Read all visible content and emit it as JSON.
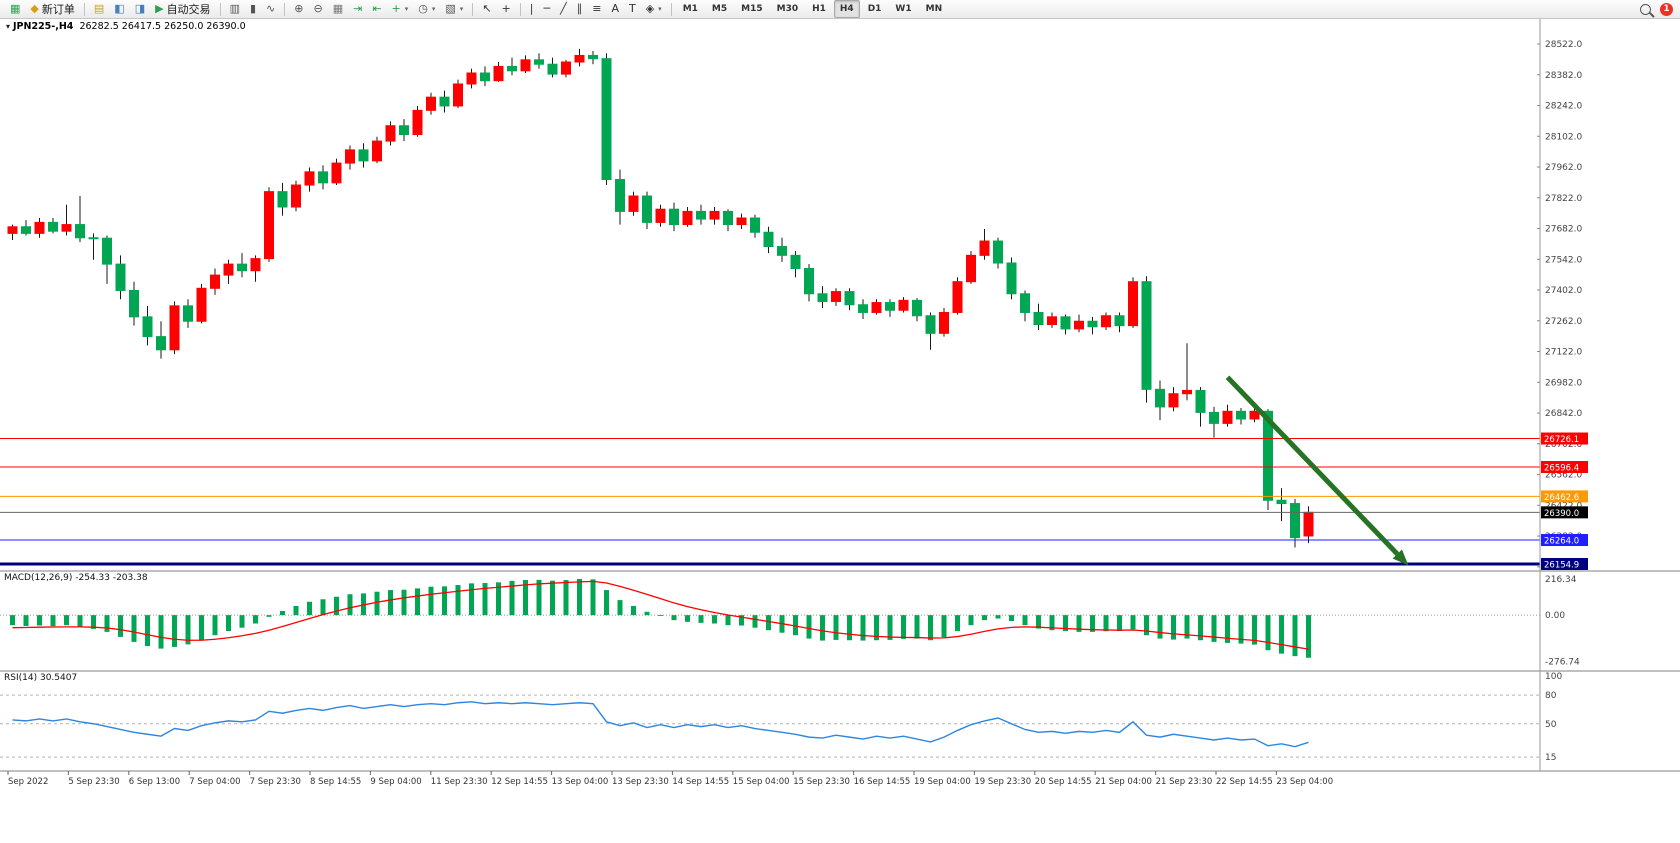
{
  "toolbar": {
    "items": [
      {
        "name": "new-chart-button",
        "glyph": "▦",
        "color": "#2e9e4f"
      },
      {
        "name": "new-order-button",
        "glyph": "◆",
        "color": "#d8a018",
        "label": "新订单"
      },
      {
        "type": "sep"
      },
      {
        "name": "meta-editor-button",
        "glyph": "▤",
        "color": "#c9a227"
      },
      {
        "name": "market-watch-button",
        "glyph": "◧",
        "color": "#4a7dbd"
      },
      {
        "name": "navigator-button",
        "glyph": "◨",
        "color": "#4a7dbd"
      },
      {
        "name": "auto-trading-button",
        "glyph": "▶",
        "color": "#2e9e4f",
        "label": "自动交易"
      },
      {
        "type": "sep"
      },
      {
        "name": "bar-chart-button",
        "glyph": "▥",
        "color": "#555555"
      },
      {
        "name": "candlestick-chart-button",
        "glyph": "▮",
        "color": "#555555"
      },
      {
        "name": "line-chart-button",
        "glyph": "∿",
        "color": "#555555"
      },
      {
        "type": "sep"
      },
      {
        "name": "zoom-in-button",
        "glyph": "⊕",
        "color": "#555555"
      },
      {
        "name": "zoom-out-button",
        "glyph": "⊖",
        "color": "#555555"
      },
      {
        "name": "tile-windows-button",
        "glyph": "▦",
        "color": "#777777"
      },
      {
        "name": "auto-scroll-button",
        "glyph": "⇥",
        "color": "#2e9e4f"
      },
      {
        "name": "chart-shift-button",
        "glyph": "⇤",
        "color": "#2e9e4f"
      },
      {
        "name": "indicators-button",
        "glyph": "+",
        "color": "#2e9e4f",
        "dropdown": true
      },
      {
        "name": "periods-button",
        "glyph": "◷",
        "color": "#555555",
        "dropdown": true
      },
      {
        "name": "templates-button",
        "glyph": "▧",
        "color": "#555555",
        "dropdown": true
      },
      {
        "type": "sep"
      },
      {
        "name": "cursor-button",
        "glyph": "↖",
        "color": "#333333"
      },
      {
        "name": "crosshair-button",
        "glyph": "+",
        "color": "#333333"
      },
      {
        "type": "sep"
      },
      {
        "name": "vertical-line-button",
        "glyph": "|",
        "color": "#333333"
      },
      {
        "name": "horizontal-line-button",
        "glyph": "─",
        "color": "#333333"
      },
      {
        "name": "trendline-button",
        "glyph": "╱",
        "color": "#333333"
      },
      {
        "name": "channel-button",
        "glyph": "∥",
        "color": "#333333"
      },
      {
        "name": "fibonacci-button",
        "glyph": "≡",
        "color": "#333333"
      },
      {
        "name": "text-button",
        "glyph": "A",
        "color": "#333333"
      },
      {
        "name": "text-label-button",
        "glyph": "T",
        "color": "#333333"
      },
      {
        "name": "shapes-button",
        "glyph": "◈",
        "color": "#333333",
        "dropdown": true
      },
      {
        "type": "sep"
      }
    ],
    "timeframes": [
      "M1",
      "M5",
      "M15",
      "M30",
      "H1",
      "H4",
      "D1",
      "W1",
      "MN"
    ],
    "active_timeframe": "H4",
    "notification_count": "1"
  },
  "chart": {
    "symbol_title": "JPN225-,H4",
    "ohlc_text": "26282.5 26417.5 26250.0 26390.0",
    "dropdown_icon": "▾"
  },
  "chart_data": [
    {
      "type": "candlestick",
      "symbol": "JPN225-",
      "timeframe": "H4",
      "last_ohlc": {
        "open": 26282.5,
        "high": 26417.5,
        "low": 26250.0,
        "close": 26390.0
      },
      "up_color": "#ff0000",
      "down_color": "#00a651",
      "y_axis": {
        "max": 28563,
        "min": 26123,
        "labels": [
          "28522.0",
          "28382.0",
          "28242.0",
          "28102.0",
          "27962.0",
          "27822.0",
          "27682.0",
          "27542.0",
          "27402.0",
          "27262.0",
          "27122.0",
          "26982.0",
          "26842.0",
          "26702.0",
          "26562.0",
          "26422.0",
          "26282.0",
          "26142.0"
        ]
      },
      "candles": [
        [
          27660,
          27700,
          27630,
          27690
        ],
        [
          27690,
          27720,
          27650,
          27660
        ],
        [
          27660,
          27730,
          27640,
          27710
        ],
        [
          27710,
          27730,
          27660,
          27670
        ],
        [
          27670,
          27790,
          27650,
          27700
        ],
        [
          27700,
          27830,
          27620,
          27640
        ],
        [
          27640,
          27660,
          27540,
          27638
        ],
        [
          27638,
          27650,
          27430,
          27520
        ],
        [
          27520,
          27560,
          27360,
          27400
        ],
        [
          27400,
          27440,
          27240,
          27280
        ],
        [
          27280,
          27330,
          27150,
          27190
        ],
        [
          27190,
          27260,
          27090,
          27130
        ],
        [
          27130,
          27350,
          27110,
          27330
        ],
        [
          27330,
          27360,
          27230,
          27260
        ],
        [
          27260,
          27430,
          27250,
          27410
        ],
        [
          27410,
          27500,
          27380,
          27470
        ],
        [
          27470,
          27540,
          27430,
          27520
        ],
        [
          27520,
          27570,
          27460,
          27490
        ],
        [
          27490,
          27560,
          27440,
          27545
        ],
        [
          27545,
          27870,
          27530,
          27850
        ],
        [
          27850,
          27890,
          27740,
          27780
        ],
        [
          27780,
          27900,
          27760,
          27880
        ],
        [
          27880,
          27960,
          27850,
          27940
        ],
        [
          27940,
          27970,
          27860,
          27890
        ],
        [
          27890,
          28000,
          27880,
          27980
        ],
        [
          27980,
          28060,
          27950,
          28040
        ],
        [
          28040,
          28070,
          27960,
          27990
        ],
        [
          27990,
          28100,
          27980,
          28080
        ],
        [
          28080,
          28170,
          28060,
          28150
        ],
        [
          28150,
          28180,
          28080,
          28110
        ],
        [
          28110,
          28240,
          28100,
          28220
        ],
        [
          28220,
          28300,
          28200,
          28280
        ],
        [
          28280,
          28310,
          28210,
          28240
        ],
        [
          28240,
          28360,
          28230,
          28340
        ],
        [
          28340,
          28410,
          28320,
          28390
        ],
        [
          28390,
          28420,
          28330,
          28355
        ],
        [
          28355,
          28440,
          28350,
          28420
        ],
        [
          28420,
          28460,
          28380,
          28400
        ],
        [
          28400,
          28470,
          28390,
          28450
        ],
        [
          28450,
          28480,
          28410,
          28430
        ],
        [
          28430,
          28460,
          28370,
          28385
        ],
        [
          28385,
          28450,
          28370,
          28440
        ],
        [
          28440,
          28500,
          28420,
          28470
        ],
        [
          28470,
          28490,
          28430,
          28455
        ],
        [
          28455,
          28480,
          27880,
          27905
        ],
        [
          27905,
          27950,
          27700,
          27760
        ],
        [
          27760,
          27850,
          27740,
          27830
        ],
        [
          27830,
          27850,
          27680,
          27710
        ],
        [
          27710,
          27790,
          27690,
          27770
        ],
        [
          27770,
          27800,
          27670,
          27700
        ],
        [
          27700,
          27780,
          27690,
          27760
        ],
        [
          27760,
          27790,
          27700,
          27725
        ],
        [
          27725,
          27780,
          27700,
          27760
        ],
        [
          27760,
          27770,
          27670,
          27700
        ],
        [
          27700,
          27750,
          27680,
          27730
        ],
        [
          27730,
          27745,
          27640,
          27665
        ],
        [
          27665,
          27690,
          27570,
          27600
        ],
        [
          27600,
          27640,
          27530,
          27560
        ],
        [
          27560,
          27580,
          27460,
          27500
        ],
        [
          27500,
          27520,
          27350,
          27385
        ],
        [
          27385,
          27420,
          27320,
          27350
        ],
        [
          27350,
          27410,
          27330,
          27395
        ],
        [
          27395,
          27410,
          27310,
          27335
        ],
        [
          27335,
          27360,
          27270,
          27300
        ],
        [
          27300,
          27360,
          27290,
          27345
        ],
        [
          27345,
          27360,
          27280,
          27310
        ],
        [
          27310,
          27370,
          27300,
          27355
        ],
        [
          27355,
          27365,
          27260,
          27285
        ],
        [
          27285,
          27300,
          27130,
          27205
        ],
        [
          27205,
          27320,
          27190,
          27300
        ],
        [
          27300,
          27460,
          27290,
          27440
        ],
        [
          27440,
          27580,
          27430,
          27560
        ],
        [
          27560,
          27680,
          27540,
          27625
        ],
        [
          27625,
          27640,
          27500,
          27525
        ],
        [
          27525,
          27550,
          27360,
          27385
        ],
        [
          27385,
          27400,
          27260,
          27300
        ],
        [
          27300,
          27340,
          27220,
          27245
        ],
        [
          27245,
          27300,
          27230,
          27280
        ],
        [
          27280,
          27290,
          27200,
          27225
        ],
        [
          27225,
          27290,
          27210,
          27260
        ],
        [
          27260,
          27280,
          27200,
          27235
        ],
        [
          27235,
          27300,
          27220,
          27285
        ],
        [
          27285,
          27300,
          27210,
          27240
        ],
        [
          27240,
          27460,
          27230,
          27440
        ],
        [
          27440,
          27465,
          26890,
          26950
        ],
        [
          26950,
          26990,
          26810,
          26870
        ],
        [
          26870,
          26960,
          26850,
          26930
        ],
        [
          26930,
          27160,
          26900,
          26945
        ],
        [
          26945,
          26960,
          26780,
          26845
        ],
        [
          26845,
          26870,
          26730,
          26795
        ],
        [
          26795,
          26880,
          26780,
          26850
        ],
        [
          26850,
          26865,
          26790,
          26815
        ],
        [
          26815,
          26870,
          26800,
          26850
        ],
        [
          26850,
          26860,
          26400,
          26445
        ],
        [
          26445,
          26500,
          26350,
          26430
        ],
        [
          26430,
          26450,
          26230,
          26275
        ],
        [
          26282.5,
          26417.5,
          26250,
          26390
        ]
      ],
      "levels": [
        {
          "price": 26726.1,
          "color": "#ff0000",
          "width": 1
        },
        {
          "price": 26596.4,
          "color": "#ff0000",
          "width": 1
        },
        {
          "price": 26462.6,
          "color": "#ff9900",
          "width": 1
        },
        {
          "price": 26264.0,
          "color": "#1f1fff",
          "width": 1
        },
        {
          "price": 26154.9,
          "color": "#000080",
          "width": 3
        }
      ],
      "bid": {
        "price": 26390.0,
        "tag_color": "#000000",
        "line_color": "#666666"
      },
      "trend_arrow": {
        "from_index": 90,
        "from_price": 27005,
        "to_index": 103.4,
        "to_price": 26148,
        "color": "#267326"
      }
    },
    {
      "type": "bar",
      "name": "MACD",
      "params": "(12,26,9)",
      "display_values": "-254.33 -203.38",
      "value": -254.33,
      "signal_value": -203.38,
      "hist_color": "#00a651",
      "signal_color": "#ff0000",
      "y_range": [
        -310,
        240
      ],
      "axis_labels": [
        "216.34",
        "0.00",
        "-276.74"
      ],
      "histogram": [
        -60,
        -65,
        -62,
        -66,
        -60,
        -72,
        -82,
        -100,
        -130,
        -160,
        -185,
        -200,
        -190,
        -175,
        -150,
        -120,
        -95,
        -75,
        -50,
        -10,
        25,
        55,
        80,
        95,
        110,
        125,
        130,
        140,
        150,
        152,
        160,
        170,
        172,
        180,
        190,
        192,
        196,
        205,
        210,
        211,
        206,
        210,
        216.34,
        214,
        150,
        90,
        55,
        20,
        -5,
        -30,
        -40,
        -46,
        -50,
        -60,
        -62,
        -75,
        -90,
        -105,
        -120,
        -140,
        -152,
        -148,
        -150,
        -152,
        -150,
        -148,
        -142,
        -140,
        -150,
        -132,
        -95,
        -60,
        -30,
        -20,
        -35,
        -60,
        -80,
        -90,
        -95,
        -100,
        -100,
        -96,
        -95,
        -85,
        -120,
        -140,
        -146,
        -140,
        -150,
        -160,
        -166,
        -170,
        -176,
        -210,
        -230,
        -245,
        -254.33
      ],
      "signal": [
        -75,
        -74,
        -72,
        -71,
        -70,
        -70,
        -72,
        -77,
        -87,
        -101,
        -117,
        -133,
        -144,
        -150,
        -150,
        -144,
        -135,
        -123,
        -109,
        -90,
        -68,
        -44,
        -20,
        3,
        24,
        44,
        61,
        77,
        91,
        103,
        114,
        125,
        134,
        143,
        152,
        160,
        167,
        174,
        181,
        187,
        191,
        195,
        199,
        202,
        192,
        172,
        149,
        124,
        99,
        73,
        51,
        32,
        16,
        1,
        -12,
        -25,
        -38,
        -51,
        -65,
        -80,
        -94,
        -105,
        -114,
        -122,
        -127,
        -131,
        -133,
        -134,
        -137,
        -136,
        -128,
        -114,
        -97,
        -82,
        -73,
        -70,
        -72,
        -76,
        -80,
        -84,
        -87,
        -89,
        -90,
        -89,
        -95,
        -104,
        -112,
        -118,
        -124,
        -131,
        -138,
        -145,
        -151,
        -163,
        -176,
        -190,
        -203.38
      ]
    },
    {
      "type": "line",
      "name": "RSI",
      "params": "(14)",
      "display_value": "30.5407",
      "value": 30.5407,
      "line_color": "#2e86de",
      "y_range": [
        0,
        100
      ],
      "levels": [
        80,
        50,
        15
      ],
      "axis_labels": [
        "100",
        "80",
        "50",
        "15"
      ],
      "values": [
        54,
        53,
        55,
        53,
        55,
        52,
        50,
        47,
        44,
        41,
        39,
        37,
        45,
        43,
        48,
        51,
        53,
        52,
        54,
        63,
        61,
        64,
        66,
        64,
        67,
        69,
        66,
        68,
        70,
        68,
        70,
        71,
        70,
        72,
        73,
        71,
        72,
        71,
        72,
        71,
        70,
        71,
        72,
        71,
        52,
        48,
        51,
        46,
        49,
        46,
        49,
        47,
        49,
        46,
        48,
        45,
        43,
        41,
        39,
        36,
        35,
        38,
        36,
        34,
        37,
        35,
        37,
        34,
        31,
        36,
        43,
        49,
        53,
        56,
        50,
        44,
        41,
        42,
        40,
        42,
        41,
        43,
        41,
        52,
        38,
        36,
        39,
        37,
        35,
        33,
        35,
        33,
        34,
        27,
        29,
        26,
        30.54
      ]
    }
  ],
  "time_labels": [
    "Sep 2022",
    "5 Sep 23:30",
    "6 Sep 13:00",
    "7 Sep 04:00",
    "7 Sep 23:30",
    "8 Sep 14:55",
    "9 Sep 04:00",
    "11 Sep 23:30",
    "12 Sep 14:55",
    "13 Sep 04:00",
    "13 Sep 23:30",
    "14 Sep 14:55",
    "15 Sep 04:00",
    "15 Sep 23:30",
    "16 Sep 14:55",
    "19 Sep 04:00",
    "19 Sep 23:30",
    "20 Sep 14:55",
    "21 Sep 04:00",
    "21 Sep 23:30",
    "22 Sep 14:55",
    "23 Sep 04:00"
  ]
}
